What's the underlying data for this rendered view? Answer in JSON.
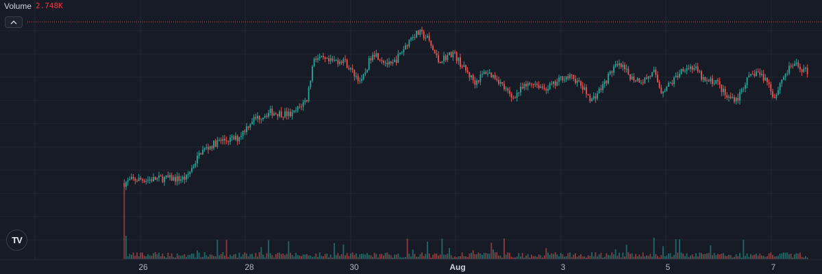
{
  "legend": {
    "title": "Volume",
    "value": "2.748K"
  },
  "colors": {
    "background": "#171b26",
    "grid": "#232733",
    "up": "#26a69a",
    "down": "#ef5350",
    "price_line": "#f23645",
    "text": "#b2b5be"
  },
  "icons": {
    "collapse": "chevron-up-icon",
    "logo": "tradingview-logo",
    "logo_text": "TV"
  },
  "chart_data": {
    "type": "candlestick",
    "title": "",
    "xlabel": "",
    "ylabel": "",
    "x_ticks": [
      {
        "label": "26",
        "bold": false
      },
      {
        "label": "28",
        "bold": false
      },
      {
        "label": "30",
        "bold": false
      },
      {
        "label": "Aug",
        "bold": true
      },
      {
        "label": "3",
        "bold": false
      },
      {
        "label": "5",
        "bold": false
      },
      {
        "label": "7",
        "bold": false
      }
    ],
    "close_path": [
      [
        0,
        70
      ],
      [
        4,
        76
      ],
      [
        8,
        77
      ],
      [
        14,
        77
      ],
      [
        20,
        79
      ],
      [
        25,
        79
      ],
      [
        30,
        78
      ],
      [
        34,
        80
      ],
      [
        42,
        130
      ],
      [
        52,
        150
      ],
      [
        62,
        155
      ],
      [
        70,
        190
      ],
      [
        80,
        205
      ],
      [
        92,
        200
      ],
      [
        100,
        230
      ],
      [
        104,
        310
      ],
      [
        112,
        300
      ],
      [
        120,
        305
      ],
      [
        124,
        285
      ],
      [
        130,
        262
      ],
      [
        136,
        320
      ],
      [
        146,
        292
      ],
      [
        150,
        310
      ],
      [
        158,
        352
      ],
      [
        162,
        355
      ],
      [
        166,
        345
      ],
      [
        172,
        302
      ],
      [
        180,
        318
      ],
      [
        186,
        288
      ],
      [
        192,
        262
      ],
      [
        198,
        282
      ],
      [
        204,
        270
      ],
      [
        212,
        232
      ],
      [
        218,
        250
      ],
      [
        224,
        262
      ],
      [
        230,
        250
      ],
      [
        236,
        258
      ],
      [
        240,
        272
      ],
      [
        246,
        270
      ],
      [
        250,
        255
      ],
      [
        256,
        228
      ],
      [
        262,
        255
      ],
      [
        268,
        290
      ],
      [
        272,
        292
      ],
      [
        278,
        270
      ],
      [
        284,
        265
      ],
      [
        290,
        280
      ],
      [
        294,
        245
      ],
      [
        300,
        262
      ],
      [
        306,
        290
      ],
      [
        312,
        290
      ],
      [
        318,
        262
      ],
      [
        324,
        265
      ],
      [
        330,
        232
      ],
      [
        336,
        232
      ],
      [
        340,
        262
      ],
      [
        346,
        282
      ],
      [
        352,
        265
      ],
      [
        356,
        232
      ],
      [
        360,
        268
      ],
      [
        366,
        296
      ],
      [
        374,
        282
      ]
    ],
    "last_value": 2.748
  }
}
